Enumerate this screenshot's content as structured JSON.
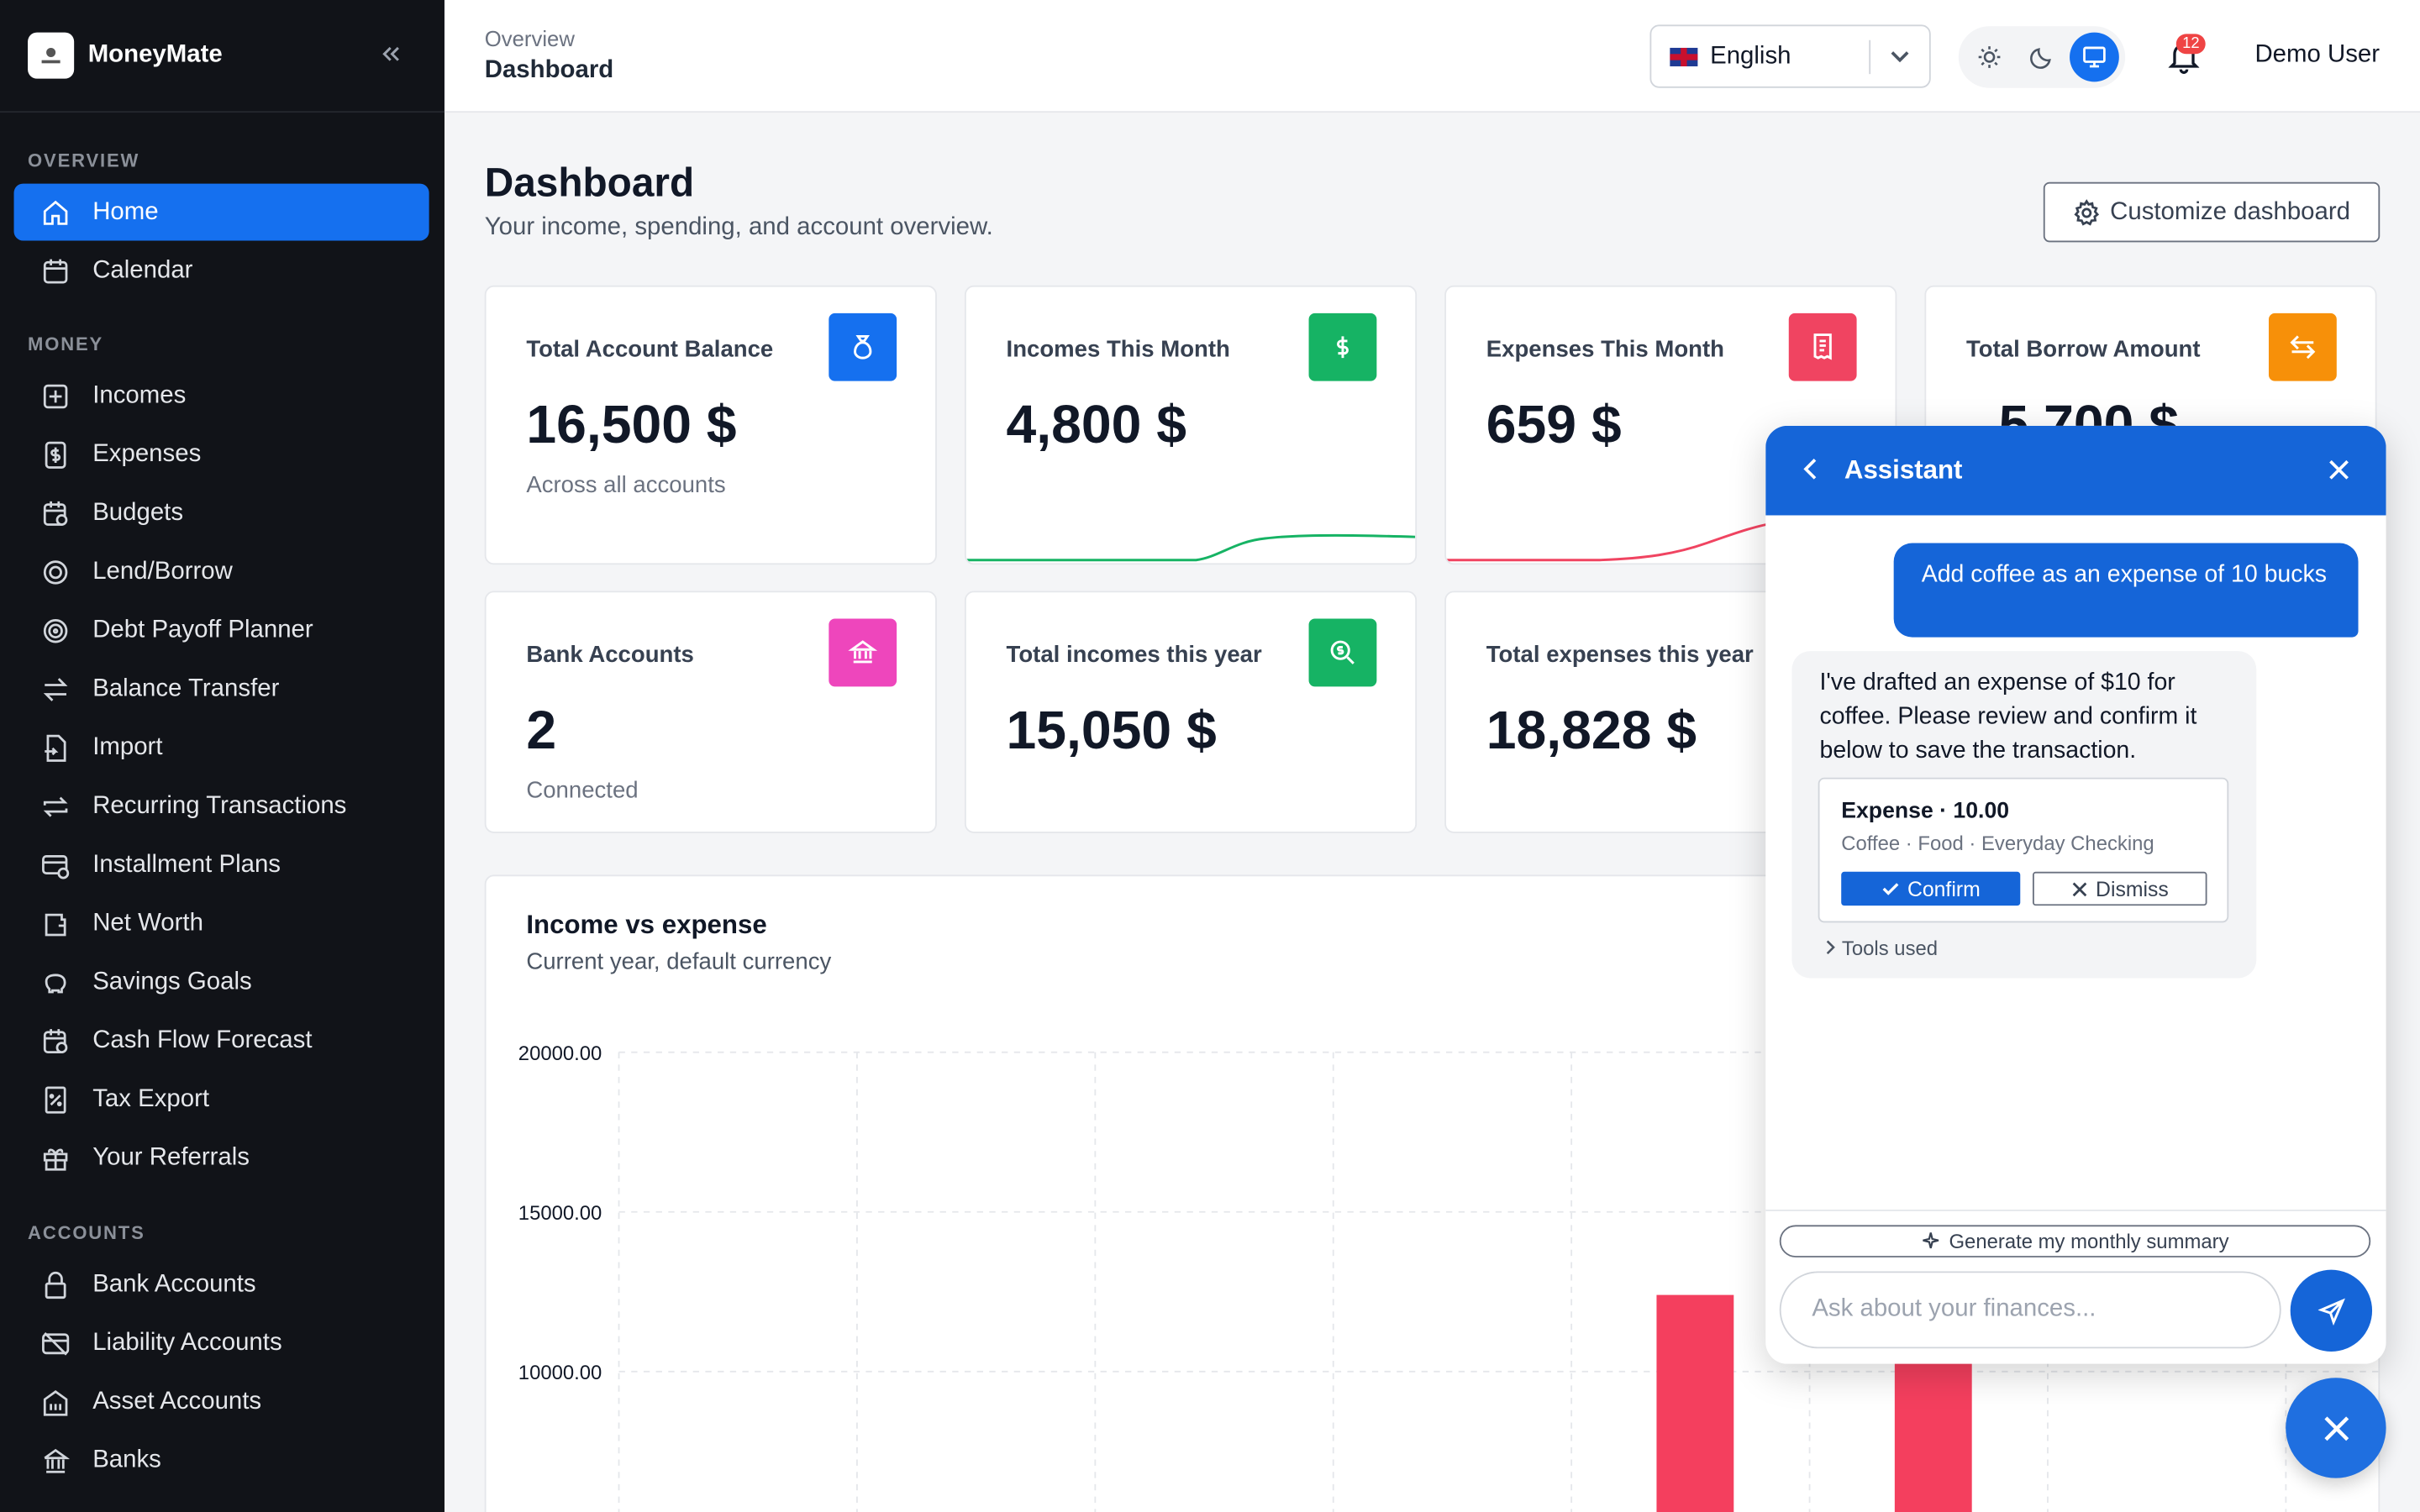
{
  "app": {
    "name": "MoneyMate",
    "logo_text": "MoneyMate"
  },
  "sidebar": {
    "collapse_icon": "double-chevron-left-icon",
    "sections": [
      {
        "title": "OVERVIEW",
        "items": [
          {
            "label": "Home",
            "icon": "home-icon",
            "active": true
          },
          {
            "label": "Calendar",
            "icon": "calendar-icon"
          }
        ]
      },
      {
        "title": "MONEY",
        "items": [
          {
            "label": "Incomes",
            "icon": "plus-square-icon"
          },
          {
            "label": "Expenses",
            "icon": "dollar-square-icon"
          },
          {
            "label": "Budgets",
            "icon": "calendar-clock-icon"
          },
          {
            "label": "Lend/Borrow",
            "icon": "spiral-icon"
          },
          {
            "label": "Debt Payoff Planner",
            "icon": "target-icon"
          },
          {
            "label": "Balance Transfer",
            "icon": "transfer-icon"
          },
          {
            "label": "Import",
            "icon": "file-import-icon"
          },
          {
            "label": "Recurring Transactions",
            "icon": "repeat-icon"
          },
          {
            "label": "Installment Plans",
            "icon": "card-clock-icon"
          },
          {
            "label": "Net Worth",
            "icon": "wallet-icon"
          },
          {
            "label": "Savings Goals",
            "icon": "piggy-bank-icon"
          },
          {
            "label": "Cash Flow Forecast",
            "icon": "calendar-forecast-icon"
          },
          {
            "label": "Tax Export",
            "icon": "receipt-percent-icon"
          },
          {
            "label": "Your Referrals",
            "icon": "gift-icon"
          }
        ]
      },
      {
        "title": "ACCOUNTS",
        "items": [
          {
            "label": "Bank Accounts",
            "icon": "lock-bank-icon"
          },
          {
            "label": "Liability Accounts",
            "icon": "card-off-icon"
          },
          {
            "label": "Asset Accounts",
            "icon": "building-icon"
          },
          {
            "label": "Banks",
            "icon": "bank-icon"
          }
        ]
      }
    ]
  },
  "topbar": {
    "breadcrumb_parent": "Overview",
    "breadcrumb_current": "Dashboard",
    "language": "English",
    "theme_modes": [
      "sun-icon",
      "moon-icon",
      "monitor-icon"
    ],
    "active_theme": "monitor-icon",
    "notification_count": "12",
    "user_name": "Demo User"
  },
  "page": {
    "title": "Dashboard",
    "subtitle": "Your income, spending, and account overview.",
    "customize_label": "Customize dashboard"
  },
  "cards": [
    {
      "title": "Total Account Balance",
      "value": "16,500 $",
      "sub": "Across all accounts",
      "icon": "money-bag-icon",
      "color": "#1570ef"
    },
    {
      "title": "Incomes This Month",
      "value": "4,800 $",
      "sub": "",
      "icon": "dollar-icon",
      "color": "#16b364",
      "spark": "up-green"
    },
    {
      "title": "Expenses This Month",
      "value": "659 $",
      "sub": "",
      "icon": "receipt-icon",
      "color": "#f04461",
      "spark": "up-red"
    },
    {
      "title": "Total Borrow Amount",
      "value": "5,700 $",
      "sub": "",
      "icon": "transfer-icon",
      "color": "#f79009"
    },
    {
      "title": "Bank Accounts",
      "value": "2",
      "sub": "Connected",
      "icon": "bank-icon",
      "color": "#ee46bc"
    },
    {
      "title": "Total incomes this year",
      "value": "15,050 $",
      "sub": "",
      "icon": "search-dollar-icon",
      "color": "#16b364"
    },
    {
      "title": "Total expenses this year",
      "value": "18,828 $",
      "sub": "",
      "icon": "",
      "color": ""
    }
  ],
  "income_chart": {
    "title": "Income vs expense",
    "subtitle": "Current year, default currency"
  },
  "chart_data": {
    "type": "bar",
    "title": "Income vs expense",
    "subtitle": "Current year, default currency",
    "y_ticks": [
      "20000.00",
      "15000.00",
      "10000.00"
    ],
    "ylim": [
      0,
      20000
    ],
    "grid": true,
    "series": [
      {
        "values": [
          null,
          null,
          null,
          null,
          12400,
          11600,
          null,
          null
        ],
        "color": "#f43f5e"
      }
    ]
  },
  "assistant": {
    "title": "Assistant",
    "user_message": "Add coffee as an expense of 10 bucks",
    "bot_message": "I've drafted an expense of $10 for coffee. Please review and confirm it below to save the transaction.",
    "draft_title": "Expense · 10.00",
    "draft_meta": "Coffee · Food · Everyday Checking",
    "confirm_label": "Confirm",
    "dismiss_label": "Dismiss",
    "tools_label": "Tools used",
    "suggestion": "Generate my monthly summary",
    "input_placeholder": "Ask about your finances..."
  }
}
